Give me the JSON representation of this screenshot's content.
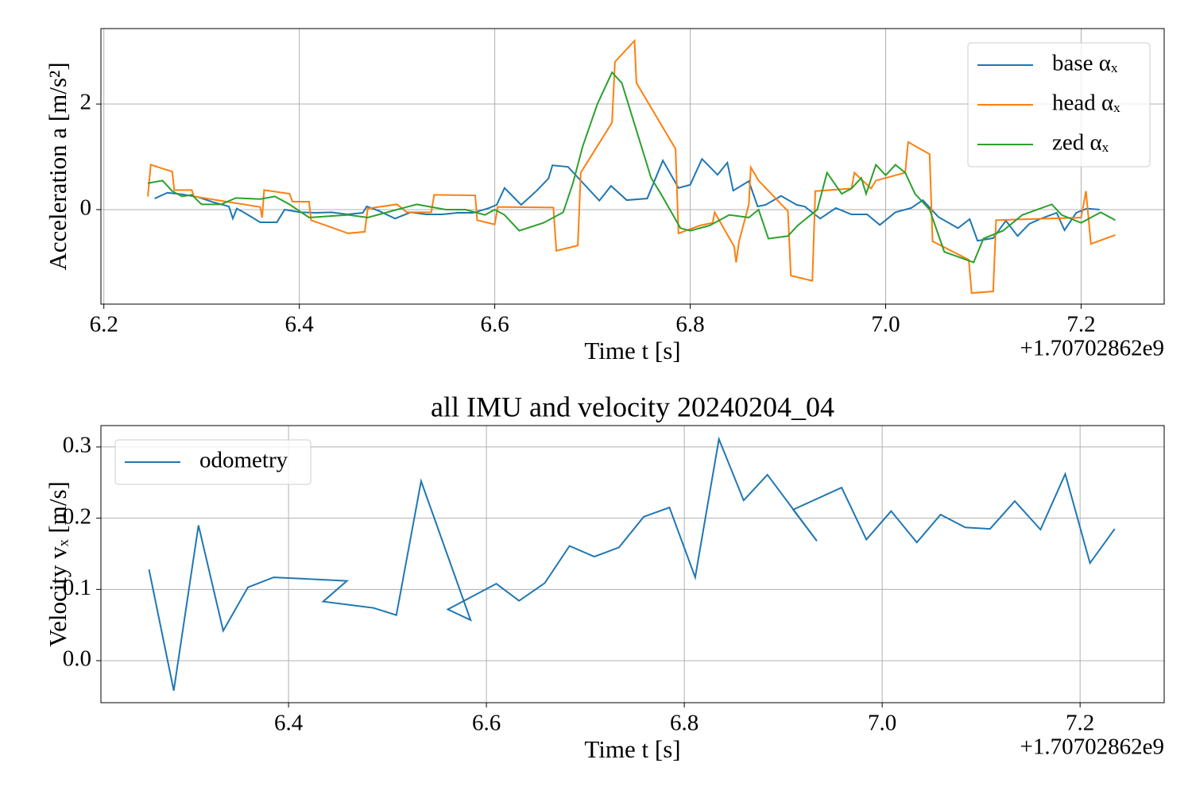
{
  "chart_data": [
    {
      "type": "line",
      "ylabel": "Acceleration a [m/s²]",
      "xlabel": "Time t [s]",
      "x_offset_label": "+1.70702862e9",
      "xlim": [
        6.197,
        7.285
      ],
      "ylim": [
        -1.79,
        3.43
      ],
      "xticks": [
        6.2,
        6.4,
        6.6,
        6.8,
        {
          "value": 7,
          "label": "7.0"
        },
        7.2
      ],
      "yticks": [
        0,
        2
      ],
      "grid": true,
      "legend": "upper right",
      "series": [
        {
          "name": "base αₓ",
          "color": "#1f77b4",
          "x": [
            6.252,
            6.265,
            6.28,
            6.296,
            6.312,
            6.328,
            6.332,
            6.336,
            6.344,
            6.36,
            6.377,
            6.385,
            6.401,
            6.417,
            6.433,
            6.449,
            6.465,
            6.469,
            6.481,
            6.498,
            6.514,
            6.53,
            6.546,
            6.562,
            6.578,
            6.594,
            6.602,
            6.61,
            6.627,
            6.643,
            6.655,
            6.659,
            6.675,
            6.695,
            6.707,
            6.719,
            6.735,
            6.756,
            6.772,
            6.788,
            6.8,
            6.812,
            6.828,
            6.838,
            6.844,
            6.86,
            6.869,
            6.877,
            6.893,
            6.909,
            6.917,
            6.933,
            6.949,
            6.965,
            6.981,
            6.994,
            7.01,
            7.026,
            7.038,
            7.054,
            7.074,
            7.086,
            7.094,
            7.11,
            7.123,
            7.135,
            7.147,
            7.159,
            7.175,
            7.183,
            7.195,
            7.206,
            7.219
          ],
          "values": [
            0.21,
            0.32,
            0.29,
            0.24,
            0.14,
            0.06,
            -0.17,
            0.02,
            -0.06,
            -0.24,
            -0.24,
            0,
            -0.05,
            -0.06,
            -0.05,
            -0.09,
            -0.06,
            0.06,
            -0.02,
            -0.17,
            -0.05,
            -0.09,
            -0.09,
            -0.06,
            -0.06,
            0.03,
            0.09,
            0.41,
            0.09,
            0.36,
            0.59,
            0.84,
            0.81,
            0.41,
            0.17,
            0.45,
            0.18,
            0.21,
            0.93,
            0.41,
            0.47,
            0.96,
            0.66,
            0.89,
            0.36,
            0.54,
            0.06,
            0.09,
            0.26,
            0.09,
            0.06,
            -0.17,
            0.03,
            -0.09,
            -0.09,
            -0.29,
            -0.05,
            0.03,
            0.18,
            -0.14,
            -0.35,
            -0.18,
            -0.59,
            -0.54,
            -0.21,
            -0.5,
            -0.27,
            -0.17,
            -0.06,
            -0.39,
            -0.06,
            0.02,
            0
          ]
        },
        {
          "name": "head αₓ",
          "color": "#ff7f0e",
          "x": [
            6.245,
            6.248,
            6.265,
            6.27,
            6.272,
            6.29,
            6.292,
            6.36,
            6.362,
            6.364,
            6.39,
            6.393,
            6.41,
            6.412,
            6.45,
            6.467,
            6.47,
            6.5,
            6.51,
            6.535,
            6.538,
            6.58,
            6.582,
            6.6,
            6.603,
            6.66,
            6.663,
            6.685,
            6.688,
            6.72,
            6.723,
            6.743,
            6.745,
            6.785,
            6.788,
            6.81,
            6.823,
            6.825,
            6.845,
            6.847,
            6.85,
            6.86,
            6.862,
            6.87,
            6.9,
            6.903,
            6.925,
            6.928,
            6.965,
            6.968,
            6.985,
            6.99,
            7.02,
            7.023,
            7.045,
            7.048,
            7.085,
            7.088,
            7.11,
            7.113,
            7.2,
            7.205,
            7.21,
            7.235
          ],
          "values": [
            0.25,
            0.85,
            0.75,
            0.72,
            0.37,
            0.37,
            0.25,
            0.05,
            -0.15,
            0.37,
            0.3,
            0.15,
            0.15,
            -0.2,
            -0.45,
            -0.42,
            0.02,
            0.1,
            -0.05,
            -0.05,
            0.28,
            0.27,
            -0.2,
            -0.28,
            0.05,
            0.04,
            -0.78,
            -0.68,
            0.7,
            1.65,
            2.8,
            3.2,
            2.4,
            1.15,
            -0.45,
            -0.3,
            -0.25,
            -0.05,
            -0.7,
            -1.0,
            -0.6,
            0.1,
            0.8,
            0.55,
            -0.03,
            -1.25,
            -1.35,
            0.35,
            0.4,
            0.7,
            0.4,
            0.55,
            0.7,
            1.28,
            1.05,
            -0.6,
            -0.95,
            -1.58,
            -1.55,
            -0.2,
            -0.15,
            0.35,
            -0.65,
            -0.48
          ]
        },
        {
          "name": "zed αₓ",
          "color": "#2ca02c",
          "x": [
            6.245,
            6.26,
            6.27,
            6.28,
            6.29,
            6.3,
            6.32,
            6.335,
            6.36,
            6.375,
            6.39,
            6.41,
            6.45,
            6.47,
            6.5,
            6.52,
            6.55,
            6.57,
            6.59,
            6.6,
            6.61,
            6.625,
            6.65,
            6.67,
            6.68,
            6.69,
            6.705,
            6.72,
            6.73,
            6.745,
            6.76,
            6.77,
            6.79,
            6.8,
            6.82,
            6.84,
            6.86,
            6.87,
            6.88,
            6.9,
            6.91,
            6.93,
            6.94,
            6.955,
            6.965,
            6.975,
            6.98,
            6.99,
            7.0,
            7.01,
            7.02,
            7.03,
            7.045,
            7.06,
            7.075,
            7.09,
            7.1,
            7.12,
            7.14,
            7.17,
            7.18,
            7.2,
            7.22,
            7.235
          ],
          "values": [
            0.5,
            0.55,
            0.35,
            0.25,
            0.28,
            0.1,
            0.1,
            0.22,
            0.2,
            0.25,
            0.1,
            -0.15,
            -0.1,
            -0.15,
            0,
            0.1,
            0,
            0,
            -0.1,
            0,
            -0.1,
            -0.4,
            -0.25,
            -0.05,
            0.5,
            1.2,
            2.0,
            2.6,
            2.4,
            1.5,
            0.6,
            0.3,
            -0.35,
            -0.4,
            -0.3,
            -0.1,
            -0.15,
            0,
            -0.55,
            -0.5,
            -0.3,
            0,
            0.7,
            0.3,
            0.4,
            0.6,
            0.3,
            0.85,
            0.65,
            0.85,
            0.7,
            0.3,
            0,
            -0.8,
            -0.9,
            -1.0,
            -0.55,
            -0.4,
            -0.1,
            0.1,
            -0.1,
            -0.25,
            -0.05,
            -0.2
          ]
        }
      ]
    },
    {
      "type": "line",
      "title": "all IMU and velocity 20240204_04",
      "ylabel": "Velocity vₓ [m/s]",
      "xlabel": "Time t [s]",
      "x_offset_label": "+1.70702862e9",
      "xlim": [
        6.2104,
        7.285
      ],
      "ylim": [
        -0.059,
        0.33
      ],
      "xticks": [
        6.4,
        6.6,
        6.8,
        {
          "value": 7,
          "label": "7.0"
        },
        7.2
      ],
      "yticks": [
        {
          "value": 0,
          "label": "0.0"
        },
        0.1,
        0.2,
        0.3
      ],
      "grid": true,
      "legend": "upper left",
      "series": [
        {
          "name": "odometry",
          "color": "#1f77b4",
          "x": [
            6.259,
            6.284,
            6.309,
            6.334,
            6.359,
            6.385,
            6.459,
            6.435,
            6.486,
            6.509,
            6.534,
            6.584,
            6.561,
            6.61,
            6.633,
            6.659,
            6.684,
            6.709,
            6.734,
            6.759,
            6.785,
            6.811,
            6.835,
            6.86,
            6.884,
            6.934,
            6.91,
            6.959,
            6.984,
            7.009,
            7.035,
            7.059,
            7.084,
            7.109,
            7.134,
            7.16,
            7.185,
            7.21,
            7.235
          ],
          "values": [
            0.128,
            -0.042,
            0.19,
            0.042,
            0.103,
            0.117,
            0.112,
            0.083,
            0.074,
            0.064,
            0.252,
            0.057,
            0.072,
            0.108,
            0.084,
            0.109,
            0.161,
            0.146,
            0.159,
            0.202,
            0.215,
            0.117,
            0.311,
            0.225,
            0.261,
            0.168,
            0.212,
            0.243,
            0.17,
            0.21,
            0.166,
            0.205,
            0.187,
            0.185,
            0.224,
            0.184,
            0.262,
            0.137,
            0.185
          ]
        }
      ]
    }
  ]
}
